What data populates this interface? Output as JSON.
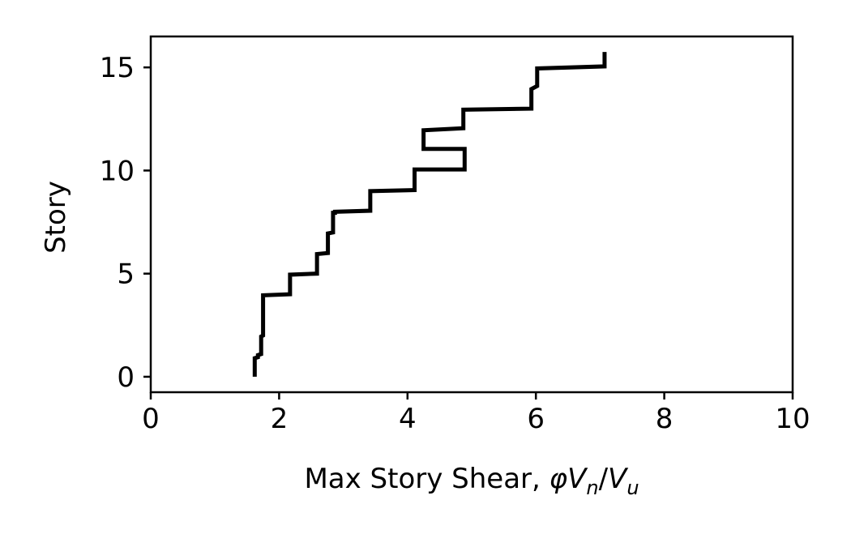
{
  "chart_data": {
    "type": "line",
    "title": "",
    "xlabel": "Max Story Shear, ",
    "xlabel_math": {
      "phi": "φ",
      "V": "V",
      "n": "n",
      "slash": "/",
      "u": "u"
    },
    "ylabel": "Story",
    "xlim": [
      0,
      10
    ],
    "ylim": [
      -0.75,
      16.5
    ],
    "xticks": [
      0,
      2,
      4,
      6,
      8,
      10
    ],
    "xtick_labels": [
      "0",
      "2",
      "4",
      "6",
      "8",
      "10"
    ],
    "yticks": [
      0,
      5,
      10,
      15
    ],
    "ytick_labels": [
      "0",
      "5",
      "10",
      "15"
    ],
    "grid": false,
    "legend": "none",
    "line_color": "#000000",
    "series": [
      {
        "x": [
          1.62,
          1.62,
          1.67,
          1.67,
          1.72,
          1.72,
          1.75,
          1.75,
          1.75,
          1.75,
          2.17,
          2.17,
          2.59,
          2.59,
          2.76,
          2.76,
          2.84,
          2.84,
          2.87,
          2.87,
          3.42,
          3.42,
          4.11,
          4.11,
          4.89,
          4.89,
          4.89,
          4.25,
          4.25,
          4.87,
          4.87,
          5.93,
          5.93,
          6.02,
          6.02,
          7.07,
          7.07
        ],
        "y": [
          0,
          0.9,
          0.95,
          1.05,
          1.1,
          1.95,
          2.0,
          2.95,
          3.05,
          3.95,
          4.0,
          4.95,
          5.0,
          5.95,
          6.0,
          6.95,
          7.0,
          7.95,
          7.95,
          8.0,
          8.05,
          9.0,
          9.05,
          10.05,
          10.05,
          10.95,
          11.05,
          11.05,
          11.95,
          12.05,
          12.95,
          13.0,
          13.95,
          14.1,
          14.95,
          15.05,
          15.75
        ]
      }
    ]
  }
}
